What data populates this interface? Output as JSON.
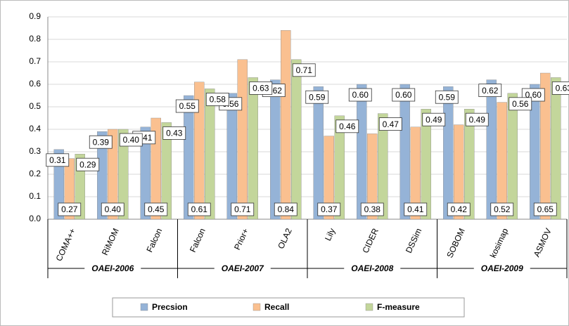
{
  "chart_data": {
    "type": "bar",
    "categories": [
      "COMA++",
      "RiMOM",
      "Falcon",
      "Falcon",
      "Prior+",
      "OLA2",
      "Lily",
      "CIDER",
      "DSSim",
      "SOBOM",
      "kosimap",
      "ASMOV"
    ],
    "groups": [
      "OAEI-2006",
      "OAEI-2007",
      "OAEI-2008",
      "OAEI-2009"
    ],
    "series": [
      {
        "name": "Precsion",
        "color": "#95b3d7",
        "values": [
          0.31,
          0.39,
          0.41,
          0.55,
          0.56,
          0.62,
          0.59,
          0.6,
          0.6,
          0.59,
          0.62,
          0.6
        ],
        "value_labels": [
          "0.31",
          "0.39",
          "0.41",
          "0.55",
          "0.56",
          "0.62",
          "0.59",
          "0.60",
          "0.60",
          "0.59",
          "0.62",
          "0.60"
        ]
      },
      {
        "name": "Recall",
        "color": "#fac090",
        "values": [
          0.27,
          0.4,
          0.45,
          0.61,
          0.71,
          0.84,
          0.37,
          0.38,
          0.41,
          0.42,
          0.52,
          0.65
        ],
        "value_labels": [
          "0.27",
          "0.40",
          "0.45",
          "0.61",
          "0.71",
          "0.84",
          "0.37",
          "0.38",
          "0.41",
          "0.42",
          "0.52",
          "0.65"
        ]
      },
      {
        "name": "F-measure",
        "color": "#c3d69b",
        "values": [
          0.29,
          0.4,
          0.43,
          0.58,
          0.63,
          0.71,
          0.46,
          0.47,
          0.49,
          0.49,
          0.56,
          0.63
        ],
        "value_labels": [
          "0.29",
          "0.40",
          "0.43",
          "0.58",
          "0.63",
          "0.71",
          "0.46",
          "0.47",
          "0.49",
          "0.49",
          "0.56",
          "0.63"
        ]
      }
    ],
    "ylim": [
      0,
      0.9
    ],
    "yticks": [
      {
        "value": 0,
        "label": "0.0"
      },
      0.1,
      0.2,
      0.3,
      0.4,
      0.5,
      0.6,
      0.7,
      0.8,
      0.9
    ],
    "grid": true,
    "legend": "bottom"
  }
}
